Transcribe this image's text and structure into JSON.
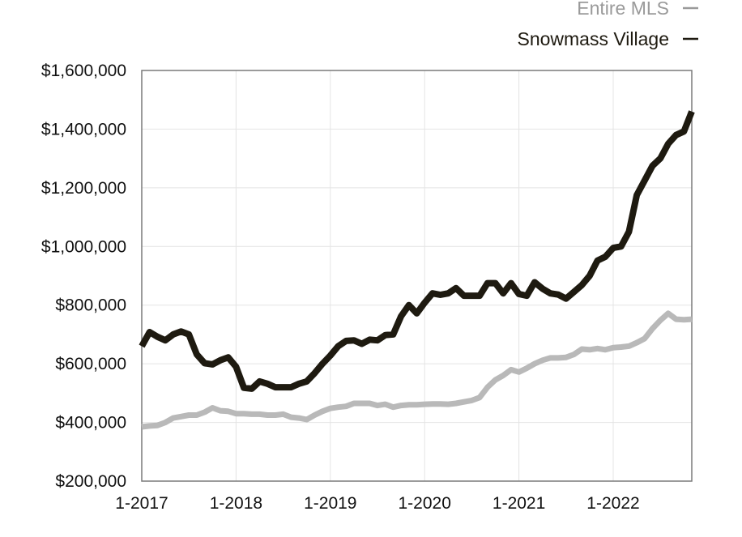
{
  "chart_data": {
    "type": "line",
    "title": "",
    "xlabel": "",
    "ylabel": "",
    "ylim": [
      200000,
      1600000
    ],
    "xlim": [
      "2017-01",
      "2022-11"
    ],
    "grid": true,
    "legend_position": "top-right",
    "y_ticks": [
      {
        "value": 1600000,
        "label": "$1,600,000"
      },
      {
        "value": 1400000,
        "label": "$1,400,000"
      },
      {
        "value": 1200000,
        "label": "$1,200,000"
      },
      {
        "value": 1000000,
        "label": "$1,000,000"
      },
      {
        "value": 800000,
        "label": "$800,000"
      },
      {
        "value": 600000,
        "label": "$600,000"
      },
      {
        "value": 400000,
        "label": "$400,000"
      },
      {
        "value": 200000,
        "label": "$200,000"
      }
    ],
    "x_ticks": [
      {
        "value": "2017-01",
        "label": "1-2017"
      },
      {
        "value": "2018-01",
        "label": "1-2018"
      },
      {
        "value": "2019-01",
        "label": "1-2019"
      },
      {
        "value": "2020-01",
        "label": "1-2020"
      },
      {
        "value": "2021-01",
        "label": "1-2021"
      },
      {
        "value": "2022-01",
        "label": "1-2022"
      }
    ],
    "x": [
      "2017-01",
      "2017-02",
      "2017-03",
      "2017-04",
      "2017-05",
      "2017-06",
      "2017-07",
      "2017-08",
      "2017-09",
      "2017-10",
      "2017-11",
      "2017-12",
      "2018-01",
      "2018-02",
      "2018-03",
      "2018-04",
      "2018-05",
      "2018-06",
      "2018-07",
      "2018-08",
      "2018-09",
      "2018-10",
      "2018-11",
      "2018-12",
      "2019-01",
      "2019-02",
      "2019-03",
      "2019-04",
      "2019-05",
      "2019-06",
      "2019-07",
      "2019-08",
      "2019-09",
      "2019-10",
      "2019-11",
      "2019-12",
      "2020-01",
      "2020-02",
      "2020-03",
      "2020-04",
      "2020-05",
      "2020-06",
      "2020-07",
      "2020-08",
      "2020-09",
      "2020-10",
      "2020-11",
      "2020-12",
      "2021-01",
      "2021-02",
      "2021-03",
      "2021-04",
      "2021-05",
      "2021-06",
      "2021-07",
      "2021-08",
      "2021-09",
      "2021-10",
      "2021-11",
      "2021-12",
      "2022-01",
      "2022-02",
      "2022-03",
      "2022-04",
      "2022-05",
      "2022-06",
      "2022-07",
      "2022-08",
      "2022-09",
      "2022-10",
      "2022-11"
    ],
    "series": [
      {
        "name": "Entire MLS",
        "color": "#b9b9b9",
        "values": [
          385000,
          388000,
          390000,
          400000,
          415000,
          420000,
          425000,
          425000,
          435000,
          450000,
          440000,
          438000,
          430000,
          430000,
          428000,
          428000,
          425000,
          425000,
          428000,
          418000,
          415000,
          410000,
          425000,
          438000,
          448000,
          452000,
          455000,
          465000,
          465000,
          465000,
          458000,
          462000,
          452000,
          458000,
          460000,
          460000,
          462000,
          463000,
          463000,
          462000,
          465000,
          470000,
          475000,
          485000,
          520000,
          545000,
          560000,
          580000,
          572000,
          585000,
          600000,
          612000,
          620000,
          620000,
          622000,
          632000,
          650000,
          648000,
          652000,
          648000,
          655000,
          657000,
          660000,
          672000,
          686000,
          720000,
          748000,
          772000,
          752000,
          750000,
          752000
        ]
      },
      {
        "name": "Snowmass Village",
        "color": "#1e1a10",
        "values": [
          660000,
          708000,
          692000,
          680000,
          700000,
          710000,
          700000,
          632000,
          602000,
          598000,
          612000,
          622000,
          590000,
          518000,
          515000,
          540000,
          532000,
          520000,
          520000,
          520000,
          532000,
          540000,
          568000,
          600000,
          628000,
          660000,
          678000,
          680000,
          668000,
          682000,
          680000,
          698000,
          700000,
          762000,
          800000,
          772000,
          808000,
          840000,
          835000,
          840000,
          858000,
          832000,
          832000,
          832000,
          875000,
          875000,
          840000,
          875000,
          838000,
          832000,
          878000,
          856000,
          840000,
          836000,
          822000,
          845000,
          868000,
          900000,
          952000,
          965000,
          995000,
          1000000,
          1050000,
          1175000,
          1225000,
          1275000,
          1300000,
          1350000,
          1380000,
          1392000,
          1460000
        ]
      }
    ]
  }
}
